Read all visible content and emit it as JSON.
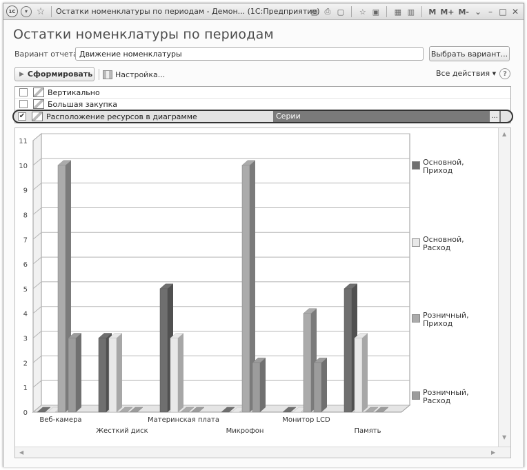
{
  "window": {
    "title": "Остатки номенклатуры по периодам - Демон... (1С:Предприятие)",
    "logo": "1С",
    "memory_buttons": [
      "M",
      "M+",
      "M-"
    ]
  },
  "page_title": "Остатки номенклатуры по периодам",
  "variant": {
    "label": "Вариант отчета:",
    "value": "Движение номенклатуры",
    "choose_button": "Выбрать вариант..."
  },
  "toolbar": {
    "form_button": "Сформировать",
    "setup_button": "Настройка...",
    "all_actions": "Все действия ▾",
    "help": "?"
  },
  "settings_list": [
    {
      "label": "Вертикально",
      "checked": false
    },
    {
      "label": "Большая закупка",
      "checked": false
    },
    {
      "label": "Расположение ресурсов в диаграмме",
      "checked": true,
      "value": "Серии",
      "more": "..."
    }
  ],
  "icons": {
    "logo": "1c-logo-icon",
    "back": "back-arrow-icon",
    "favorite": "star-icon",
    "save": "save-icon",
    "print": "print-icon",
    "preview": "print-preview-icon",
    "calculator": "calculator-icon",
    "calendar": "calendar-icon"
  },
  "colors": {
    "series1": "#6f6f6f",
    "series2": "#e8e8e8",
    "series3": "#ababab",
    "series4": "#9c9c9c",
    "selected_value_bg": "#7a7a7a"
  },
  "chart_data": {
    "type": "bar",
    "three_d": true,
    "categories": [
      "Веб-камера",
      "Жесткий диск",
      "Материнская плата",
      "Микрофон",
      "Монитор LCD",
      "Память"
    ],
    "series": [
      {
        "name": "Основной, Приход",
        "values": [
          0,
          3,
          5,
          0,
          0,
          5
        ]
      },
      {
        "name": "Основной, Расход",
        "values": [
          0,
          3,
          3,
          0,
          0,
          3
        ]
      },
      {
        "name": "Розничный, Приход",
        "values": [
          10,
          0,
          0,
          10,
          4,
          0
        ]
      },
      {
        "name": "Розничный, Расход",
        "values": [
          3,
          0,
          0,
          2,
          2,
          0
        ]
      }
    ],
    "ylim": [
      0,
      11
    ],
    "yticks": [
      0,
      1,
      2,
      3,
      4,
      5,
      6,
      7,
      8,
      9,
      10,
      11
    ],
    "grid": true,
    "legend_position": "right"
  }
}
